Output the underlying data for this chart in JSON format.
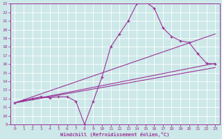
{
  "xlabel": "Windchill (Refroidissement éolien,°C)",
  "bg_color": "#cde8e8",
  "line_color": "#993399",
  "grid_color": "#aacccc",
  "xlim": [
    -0.5,
    23.5
  ],
  "ylim": [
    9,
    23
  ],
  "xticks": [
    0,
    1,
    2,
    3,
    4,
    5,
    6,
    7,
    8,
    9,
    10,
    11,
    12,
    13,
    14,
    15,
    16,
    17,
    18,
    19,
    20,
    21,
    22,
    23
  ],
  "yticks": [
    9,
    10,
    11,
    12,
    13,
    14,
    15,
    16,
    17,
    18,
    19,
    20,
    21,
    22,
    23
  ],
  "main_x": [
    0,
    1,
    2,
    3,
    4,
    5,
    6,
    7,
    8,
    9,
    10,
    11,
    12,
    13,
    14,
    15,
    16,
    17,
    18,
    19,
    20,
    21,
    22,
    23
  ],
  "main_y": [
    11.5,
    11.8,
    12.0,
    12.2,
    12.1,
    12.2,
    12.2,
    11.7,
    9.0,
    11.7,
    14.5,
    18.0,
    19.5,
    21.0,
    23.0,
    23.2,
    22.5,
    20.2,
    19.2,
    18.7,
    18.5,
    17.2,
    16.1,
    16.0
  ],
  "trend1_x": [
    0,
    23
  ],
  "trend1_y": [
    11.5,
    19.5
  ],
  "trend2_x": [
    0,
    23
  ],
  "trend2_y": [
    11.5,
    16.1
  ],
  "trend3_x": [
    0,
    23
  ],
  "trend3_y": [
    11.5,
    15.6
  ]
}
